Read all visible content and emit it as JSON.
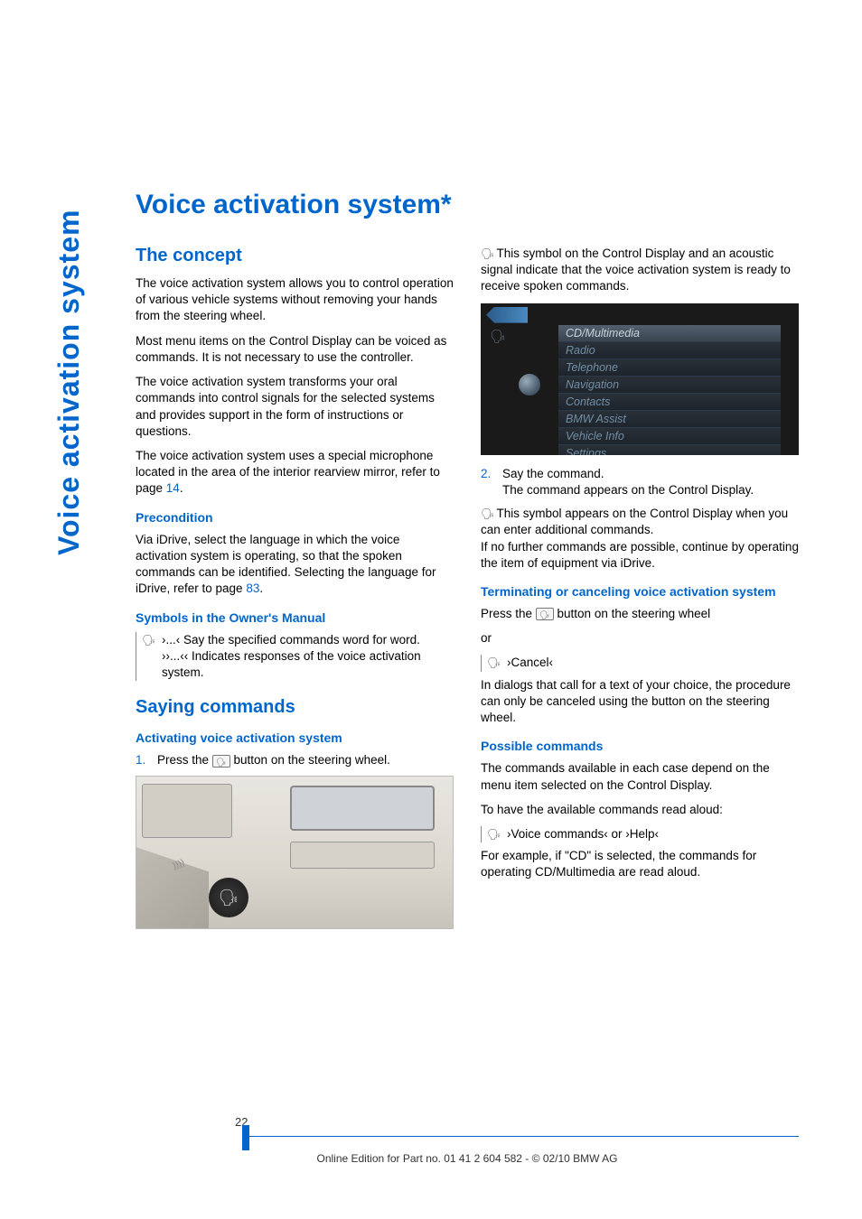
{
  "colors": {
    "accent": "#0066cc",
    "body": "#000000"
  },
  "sidebar": "Voice activation system",
  "title": "Voice activation system*",
  "left": {
    "concept_h": "The concept",
    "p1": "The voice activation system allows you to control operation of various vehicle systems without removing your hands from the steering wheel.",
    "p2": "Most menu items on the Control Display can be voiced as commands. It is not necessary to use the controller.",
    "p3": "The voice activation system transforms your oral commands into control signals for the selected systems and provides support in the form of instructions or questions.",
    "p4a": "The voice activation system uses a special microphone located in the area of the interior rearview mirror, refer to page ",
    "p4link": "14",
    "p4b": ".",
    "precond_h": "Precondition",
    "precond_p_a": "Via iDrive, select the language in which the voice activation system is operating, so that the spoken commands can be identified. Selecting the language for iDrive, refer to page ",
    "precond_link": "83",
    "precond_p_b": ".",
    "symbols_h": "Symbols in the Owner's Manual",
    "sym1_pre": "›...‹ ",
    "sym1": "Say the specified commands word for word.",
    "sym2_pre": "››...‹‹ ",
    "sym2": "Indicates responses of the voice activation system.",
    "saying_h": "Saying commands",
    "activating_h": "Activating voice activation system",
    "step1_num": "1.",
    "step1a": "Press the ",
    "step1b": " button on the steering wheel."
  },
  "right": {
    "intro_a": " This symbol on the Control Display and an acoustic signal indicate that the voice activation system is ready to receive spoken commands.",
    "menu": [
      "CD/Multimedia",
      "Radio",
      "Telephone",
      "Navigation",
      "Contacts",
      "BMW Assist",
      "Vehicle Info",
      "Settings"
    ],
    "menu_selected_index": 0,
    "step2_num": "2.",
    "step2a": "Say the command.",
    "step2b": "The command appears on the Control Display.",
    "addl": " This symbol appears on the Control Display when you can enter additional commands.",
    "addl2": "If no further commands are possible, continue by operating the item of equipment via iDrive.",
    "term_h": "Terminating or canceling voice activation system",
    "term_a": "Press the ",
    "term_b": " button on the steering wheel",
    "term_or": "or",
    "cancel": "›Cancel‹",
    "dialogs": "In dialogs that call for a text of your choice, the procedure can only be canceled using the button on the steering wheel.",
    "poss_h": "Possible commands",
    "poss_p1": "The commands available in each case depend on the menu item selected on the Control Display.",
    "poss_p2": "To have the available commands read aloud:",
    "voice_cmd": "›Voice commands‹ or ›Help‹",
    "example": "For example, if \"CD\" is selected, the commands for operating CD/Multimedia are read aloud."
  },
  "footer": {
    "page": "22",
    "text": "Online Edition for Part no. 01 41 2 604 582 - © 02/10 BMW AG"
  }
}
